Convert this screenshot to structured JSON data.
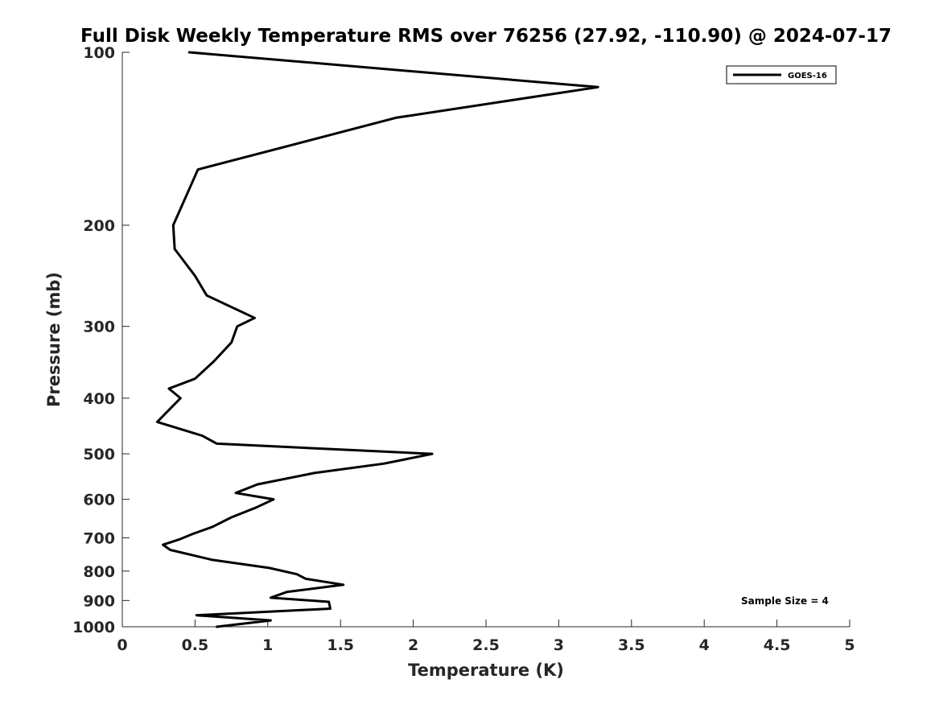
{
  "chart_data": {
    "type": "line",
    "title": "Full Disk Weekly Temperature RMS over 76256 (27.92, -110.90) @ 2024-07-17",
    "xlabel": "Temperature (K)",
    "ylabel": "Pressure (mb)",
    "xlim": [
      0,
      5
    ],
    "ylim": [
      1000,
      100
    ],
    "y_scale": "log",
    "x_ticks": [
      0,
      0.5,
      1,
      1.5,
      2,
      2.5,
      3,
      3.5,
      4,
      4.5,
      5
    ],
    "x_tick_labels": [
      "0",
      "0.5",
      "1",
      "1.5",
      "2",
      "2.5",
      "3",
      "3.5",
      "4",
      "4.5",
      "5"
    ],
    "y_ticks": [
      100,
      200,
      300,
      400,
      500,
      600,
      700,
      800,
      900,
      1000
    ],
    "y_tick_labels": [
      "100",
      "200",
      "300",
      "400",
      "500",
      "600",
      "700",
      "800",
      "900",
      "1000"
    ],
    "grid": false,
    "legend": {
      "position": "top-right",
      "entries": [
        "GOES-16"
      ]
    },
    "annotation": "Sample Size = 4",
    "series": [
      {
        "name": "GOES-16",
        "color": "#000000",
        "points": [
          [
            0.46,
            100
          ],
          [
            3.27,
            115
          ],
          [
            1.88,
            130
          ],
          [
            0.52,
            160
          ],
          [
            0.35,
            200
          ],
          [
            0.36,
            220
          ],
          [
            0.5,
            245
          ],
          [
            0.58,
            265
          ],
          [
            0.91,
            290
          ],
          [
            0.79,
            300
          ],
          [
            0.75,
            320
          ],
          [
            0.63,
            345
          ],
          [
            0.5,
            370
          ],
          [
            0.32,
            385
          ],
          [
            0.4,
            400
          ],
          [
            0.24,
            440
          ],
          [
            0.55,
            465
          ],
          [
            0.65,
            480
          ],
          [
            2.13,
            500
          ],
          [
            1.8,
            520
          ],
          [
            1.32,
            540
          ],
          [
            0.93,
            565
          ],
          [
            0.78,
            585
          ],
          [
            1.04,
            600
          ],
          [
            0.92,
            620
          ],
          [
            0.75,
            645
          ],
          [
            0.62,
            670
          ],
          [
            0.48,
            690
          ],
          [
            0.39,
            705
          ],
          [
            0.28,
            720
          ],
          [
            0.33,
            735
          ],
          [
            0.62,
            765
          ],
          [
            1.01,
            790
          ],
          [
            1.2,
            810
          ],
          [
            1.26,
            825
          ],
          [
            1.52,
            845
          ],
          [
            1.13,
            870
          ],
          [
            1.02,
            890
          ],
          [
            1.42,
            905
          ],
          [
            1.43,
            930
          ],
          [
            0.51,
            955
          ],
          [
            1.02,
            975
          ],
          [
            0.65,
            1000
          ]
        ]
      }
    ]
  }
}
